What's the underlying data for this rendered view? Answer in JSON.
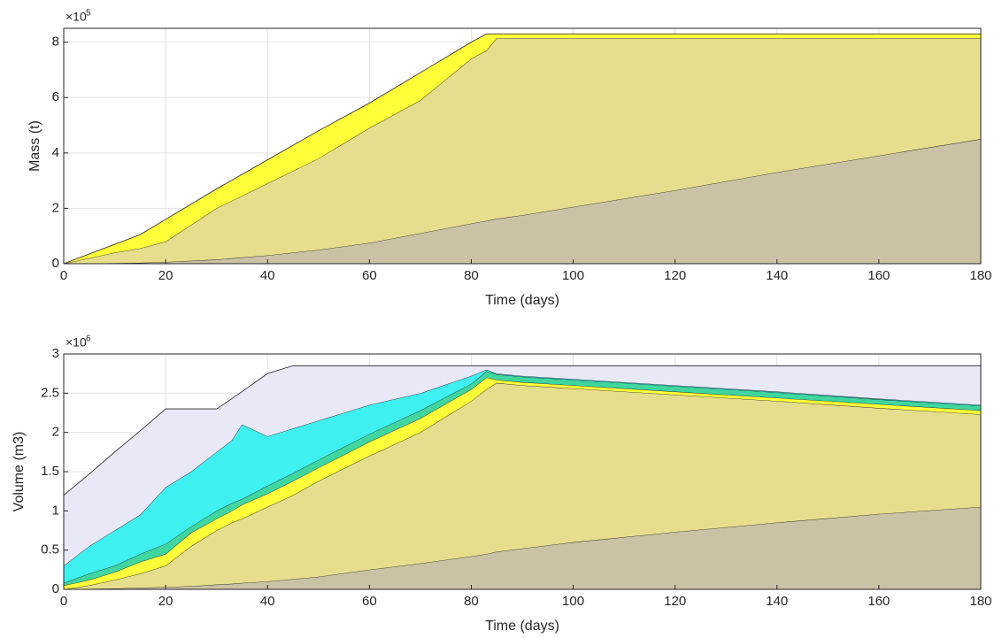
{
  "chart_data": [
    {
      "type": "area",
      "ylabel": "Mass (t)",
      "xlabel": "Time (days)",
      "y_scale_base": "×10",
      "y_scale_exponent": "5",
      "xlim": [
        0,
        180
      ],
      "xticks": [
        0,
        20,
        40,
        60,
        80,
        100,
        120,
        140,
        160,
        180
      ],
      "ylim": [
        0,
        8.5
      ],
      "yticks": [
        0,
        2,
        4,
        6,
        8
      ],
      "grid": true,
      "x": [
        0,
        10,
        15,
        20,
        30,
        40,
        50,
        60,
        70,
        80,
        83,
        85,
        90,
        100,
        120,
        140,
        160,
        180
      ],
      "series": [
        {
          "color": "#cbc2a6",
          "values": [
            0,
            0.02,
            0.03,
            0.06,
            0.15,
            0.3,
            0.5,
            0.75,
            1.1,
            1.45,
            1.55,
            1.62,
            1.75,
            2.05,
            2.65,
            3.3,
            3.9,
            4.5
          ]
        },
        {
          "color": "#e6de8c",
          "values": [
            0,
            0.38,
            0.52,
            0.74,
            1.85,
            2.6,
            3.3,
            4.15,
            4.8,
            5.95,
            6.15,
            6.53,
            6.4,
            6.1,
            5.5,
            4.85,
            4.25,
            3.65
          ]
        },
        {
          "color": "#ffff3a",
          "values": [
            0,
            0.3,
            0.5,
            0.8,
            0.7,
            0.85,
            1.0,
            0.9,
            1.0,
            0.6,
            0.6,
            0.15,
            0.15,
            0.15,
            0.15,
            0.15,
            0.15,
            0.15
          ]
        }
      ]
    },
    {
      "type": "area",
      "ylabel": "Volume (m3)",
      "xlabel": "Time (days)",
      "y_scale_base": "×10",
      "y_scale_exponent": "6",
      "xlim": [
        0,
        180
      ],
      "xticks": [
        0,
        20,
        40,
        60,
        80,
        100,
        120,
        140,
        160,
        180
      ],
      "ylim": [
        0,
        3
      ],
      "yticks": [
        0,
        0.5,
        1,
        1.5,
        2,
        2.5,
        3
      ],
      "grid": true,
      "x": [
        0,
        5,
        10,
        15,
        20,
        25,
        30,
        33,
        35,
        40,
        45,
        50,
        60,
        70,
        80,
        83,
        85,
        90,
        100,
        120,
        140,
        160,
        180
      ],
      "series": [
        {
          "color": "#cbc2a6",
          "values": [
            0,
            0.005,
            0.01,
            0.02,
            0.03,
            0.04,
            0.06,
            0.07,
            0.08,
            0.1,
            0.13,
            0.16,
            0.25,
            0.33,
            0.42,
            0.45,
            0.48,
            0.52,
            0.6,
            0.73,
            0.85,
            0.96,
            1.05
          ]
        },
        {
          "color": "#e6de8c",
          "values": [
            0,
            0.045,
            0.11,
            0.18,
            0.27,
            0.51,
            0.69,
            0.78,
            0.82,
            0.95,
            1.07,
            1.22,
            1.45,
            1.67,
            1.98,
            2.1,
            2.15,
            2.08,
            1.96,
            1.75,
            1.55,
            1.35,
            1.18
          ]
        },
        {
          "color": "#ffff3a",
          "values": [
            0.05,
            0.07,
            0.1,
            0.15,
            0.15,
            0.17,
            0.15,
            0.15,
            0.18,
            0.17,
            0.18,
            0.17,
            0.18,
            0.18,
            0.15,
            0.15,
            0.04,
            0.04,
            0.04,
            0.04,
            0.04,
            0.05,
            0.05
          ]
        },
        {
          "color": "#3fd6a0",
          "values": [
            0.03,
            0.08,
            0.08,
            0.1,
            0.13,
            0.08,
            0.1,
            0.1,
            0.07,
            0.1,
            0.1,
            0.1,
            0.1,
            0.1,
            0.07,
            0.08,
            0.07,
            0.07,
            0.07,
            0.07,
            0.07,
            0.06,
            0.06
          ]
        },
        {
          "color": "#3ff0f0",
          "values": [
            0.22,
            0.35,
            0.45,
            0.5,
            0.72,
            0.7,
            0.75,
            0.8,
            0.95,
            0.63,
            0.57,
            0.5,
            0.37,
            0.22,
            0.1,
            0.02,
            0.01,
            0.01,
            0.01,
            0.01,
            0.01,
            0.01,
            0.01
          ]
        },
        {
          "color": "#e8e8f6",
          "values": [
            0.9,
            0.92,
            1.0,
            1.07,
            1.0,
            0.8,
            0.55,
            0.53,
            0.42,
            0.8,
            0.8,
            0.7,
            0.5,
            0.35,
            0.13,
            0.05,
            0.1,
            0.13,
            0.17,
            0.25,
            0.33,
            0.42,
            0.5
          ]
        }
      ]
    }
  ]
}
